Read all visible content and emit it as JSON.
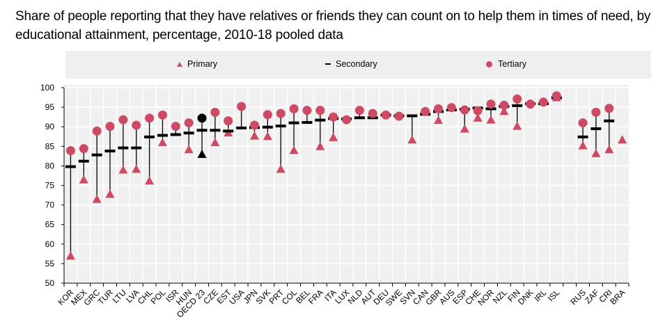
{
  "title": "Share of people reporting that they have relatives or friends they can count on to help them in times of need, by educational attainment, percentage, 2010-18 pooled data",
  "legend": {
    "items": [
      {
        "label": "Primary",
        "marker": "triangle",
        "color": "#cc4a63"
      },
      {
        "label": "Secondary",
        "marker": "dash",
        "color": "#000000"
      },
      {
        "label": "Tertiary",
        "marker": "circle",
        "color": "#cc4a63"
      }
    ]
  },
  "chart_data": {
    "type": "scatter",
    "title": "Share of people reporting that they have relatives or friends they can count on to help them in times of need, by educational attainment, percentage, 2010-18 pooled data",
    "xlabel": "",
    "ylabel": "",
    "ylim": [
      50,
      100
    ],
    "yticks": [
      50,
      55,
      60,
      65,
      70,
      75,
      80,
      85,
      90,
      95,
      100
    ],
    "grid": true,
    "legend_position": "top",
    "highlight": {
      "category": "OECD 23",
      "color": "#000000"
    },
    "marker_color": "#cc4a63",
    "categories": [
      "KOR",
      "MEX",
      "GRC",
      "TUR",
      "LTU",
      "LVA",
      "CHL",
      "POL",
      "ISR",
      "HUN",
      "OECD 23",
      "CZE",
      "EST",
      "USA",
      "JPN",
      "SVK",
      "PRT",
      "COL",
      "BEL",
      "FRA",
      "ITA",
      "LUX",
      "NLD",
      "AUT",
      "DEU",
      "SWE",
      "SVN",
      "CAN",
      "GBR",
      "AUS",
      "ESP",
      "CHE",
      "NOR",
      "NZL",
      "FIN",
      "DNK",
      "IRL",
      "ISL",
      "",
      "RUS",
      "ZAF",
      "CRI",
      "BRA"
    ],
    "series": [
      {
        "name": "Primary",
        "marker": "triangle",
        "values": [
          57.0,
          76.5,
          71.5,
          72.8,
          79.0,
          79.2,
          76.2,
          86.0,
          null,
          84.2,
          83.0,
          86.0,
          88.5,
          null,
          87.7,
          87.6,
          79.2,
          84.0,
          null,
          85.0,
          87.3,
          null,
          null,
          null,
          null,
          null,
          86.7,
          null,
          91.7,
          null,
          89.5,
          92.3,
          91.8,
          94.0,
          90.2,
          null,
          null,
          97.5,
          null,
          85.2,
          83.2,
          84.2,
          86.7
        ]
      },
      {
        "name": "Secondary",
        "marker": "dash",
        "values": [
          79.8,
          81.2,
          82.8,
          83.8,
          84.6,
          84.6,
          87.4,
          87.8,
          88.0,
          88.4,
          89.1,
          89.1,
          88.9,
          89.7,
          89.8,
          89.9,
          90.2,
          91.0,
          91.1,
          91.7,
          92.1,
          92.0,
          92.3,
          92.3,
          93.0,
          92.8,
          92.8,
          93.2,
          93.9,
          94.3,
          94.5,
          94.8,
          94.6,
          95.2,
          95.4,
          95.9,
          95.9,
          97.4,
          null,
          87.4,
          89.5,
          91.5,
          null
        ]
      },
      {
        "name": "Tertiary",
        "marker": "circle",
        "values": [
          83.9,
          84.4,
          88.9,
          90.1,
          91.8,
          90.4,
          92.2,
          93.0,
          90.1,
          91.0,
          92.2,
          93.7,
          91.5,
          95.2,
          90.4,
          93.1,
          93.4,
          94.6,
          94.2,
          94.2,
          92.5,
          91.8,
          94.2,
          93.4,
          93.0,
          92.7,
          null,
          93.9,
          94.6,
          94.9,
          94.3,
          94.1,
          95.8,
          95.5,
          97.1,
          95.8,
          96.3,
          97.9,
          null,
          91.0,
          93.7,
          94.7,
          null
        ]
      }
    ]
  }
}
